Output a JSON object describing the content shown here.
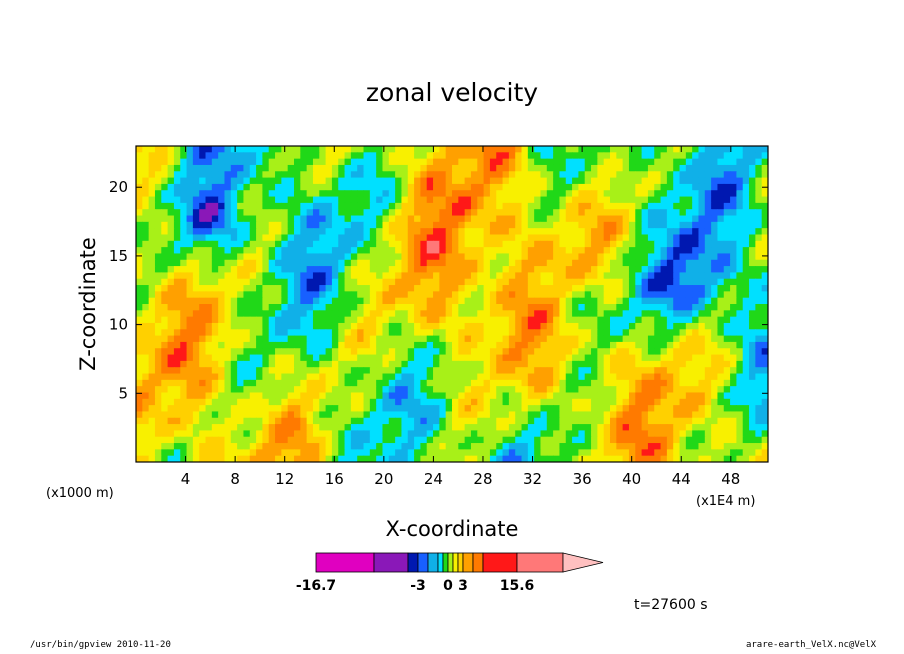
{
  "chart_data": {
    "type": "heatmap",
    "title": "zonal velocity",
    "xlabel": "X-coordinate",
    "ylabel": "Z-coordinate",
    "x_unit_left": "(x1000 m)",
    "x_unit_right": "(x1E4 m)",
    "xlim": [
      0,
      51
    ],
    "ylim": [
      0,
      23
    ],
    "x_ticks": [
      4,
      8,
      12,
      16,
      20,
      24,
      28,
      32,
      36,
      40,
      44,
      48
    ],
    "y_ticks": [
      5,
      10,
      15,
      20
    ],
    "colorbar": {
      "colors": [
        "#e000c0",
        "#8a18b8",
        "#0018b0",
        "#1860ff",
        "#10b0e8",
        "#00e0ff",
        "#20d818",
        "#a8f018",
        "#f8f000",
        "#ffd000",
        "#ffa000",
        "#ff7a00",
        "#ff1818",
        "#ff7878",
        "#ffc0c0"
      ],
      "labels": [
        "-16.7",
        "-3",
        "0",
        "3",
        "15.6"
      ]
    },
    "time_label": "t=27600 s"
  },
  "footer": {
    "left": "/usr/bin/gpview   2010-11-20",
    "right": "arare-earth_VelX.nc@VelX"
  }
}
